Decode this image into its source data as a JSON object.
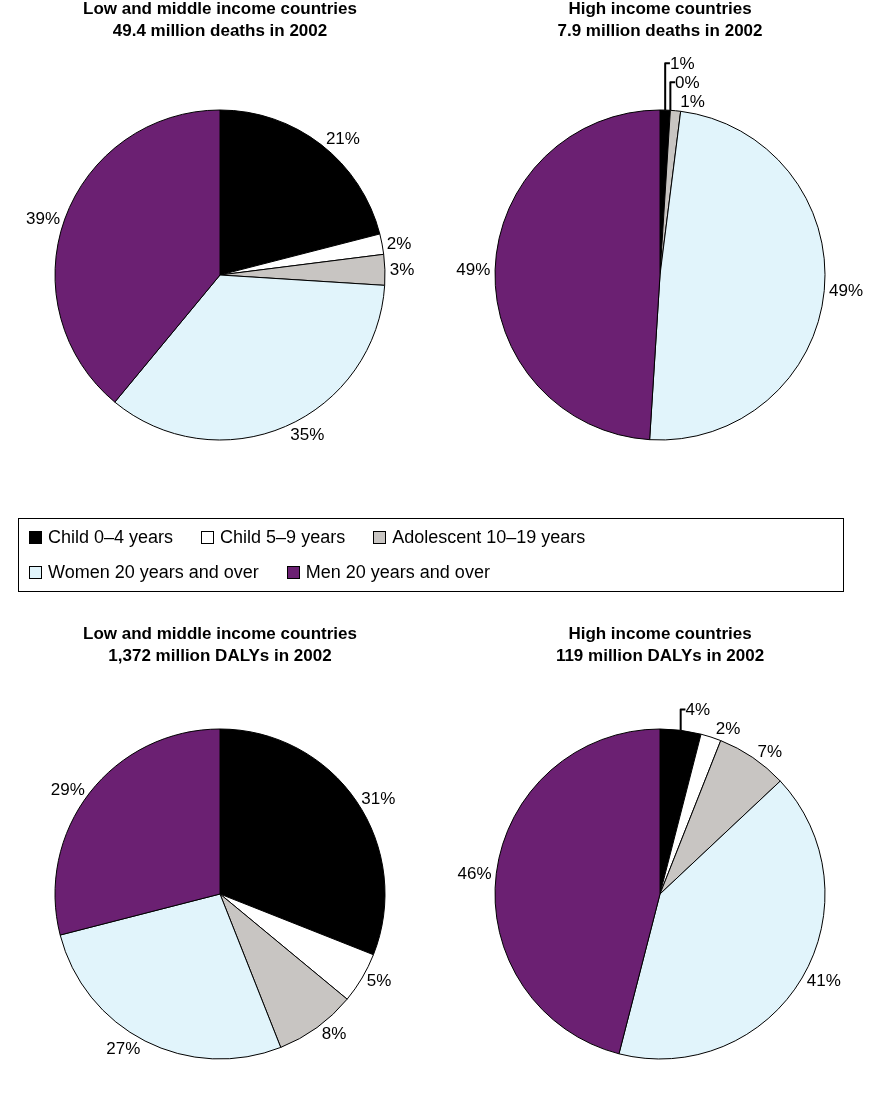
{
  "chart_data": [
    {
      "type": "pie",
      "title": "Low and middle income countries",
      "subtitle": "49.4 million deaths in 2002",
      "categories": [
        "Child 0–4 years",
        "Child 5–9 years",
        "Adolescent 10–19 years",
        "Women 20 years and over",
        "Men 20 years and over"
      ],
      "values": [
        21,
        2,
        3,
        35,
        39
      ],
      "value_labels": [
        "21%",
        "2%",
        "3%",
        "35%",
        "39%"
      ],
      "colors": [
        "#000000",
        "#ffffff",
        "#c8c5c2",
        "#e1f4fb",
        "#6b2072"
      ],
      "legend": "bottom"
    },
    {
      "type": "pie",
      "title": "High income countries",
      "subtitle": "7.9 million deaths in 2002",
      "categories": [
        null,
        null,
        null,
        null,
        null
      ],
      "values": [
        1,
        0,
        1,
        49,
        49
      ],
      "value_labels": [
        "1%",
        "0%",
        "1%",
        "49%",
        "49%"
      ],
      "colors": [
        "#000000",
        "#ffffff",
        "#c8c5c2",
        "#e1f4fb",
        "#6b2072"
      ]
    },
    {
      "type": "pie",
      "title": "Low and middle income countries",
      "subtitle": "1,372 million DALYs in 2002",
      "categories": [
        null,
        null,
        null,
        null,
        null
      ],
      "values": [
        31,
        5,
        8,
        27,
        29
      ],
      "value_labels": [
        "31%",
        "5%",
        "8%",
        "27%",
        "29%"
      ],
      "colors": [
        "#000000",
        "#ffffff",
        "#c8c5c2",
        "#e1f4fb",
        "#6b2072"
      ]
    },
    {
      "type": "pie",
      "title": "High income countries",
      "subtitle": "119 million DALYs in 2002",
      "categories": [
        null,
        null,
        null,
        null,
        null
      ],
      "values": [
        4,
        2,
        7,
        41,
        46
      ],
      "value_labels": [
        "4%",
        "2%",
        "7%",
        "41%",
        "46%"
      ],
      "colors": [
        "#000000",
        "#ffffff",
        "#c8c5c2",
        "#e1f4fb",
        "#6b2072"
      ]
    }
  ]
}
